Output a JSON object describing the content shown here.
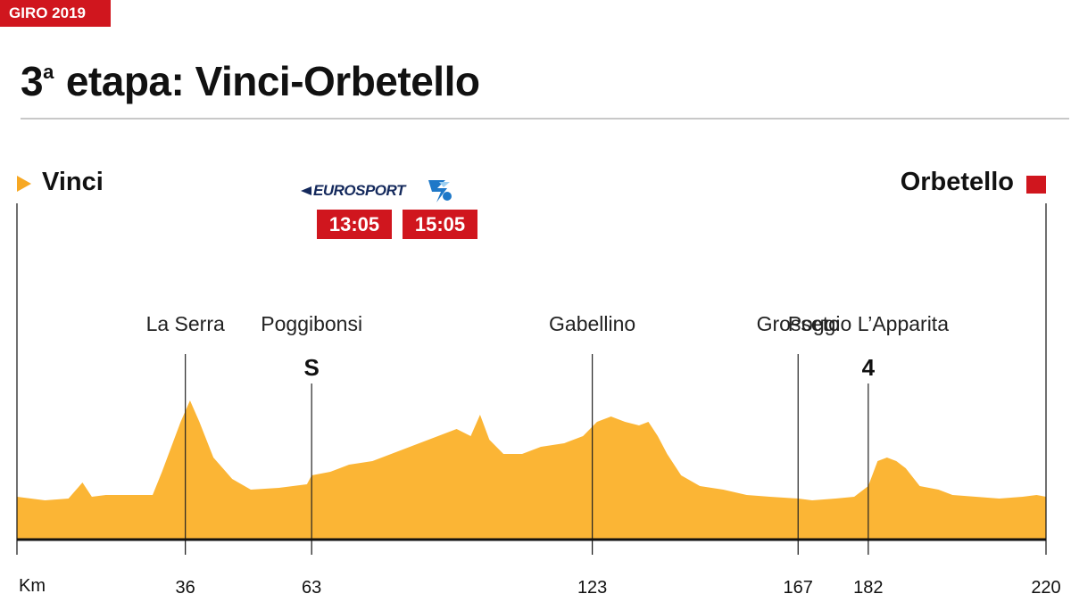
{
  "header": {
    "badge": "GIRO 2019",
    "title_number": "3",
    "title_sup": "a",
    "title_text": "etapa: Vinci-Orbetello"
  },
  "route": {
    "start": "Vinci",
    "finish": "Orbetello"
  },
  "broadcast": {
    "channel_1": "EUROSPORT",
    "channel_2_icon": "rai-sport-icon",
    "time_1": "13:05",
    "time_2": "15:05"
  },
  "colors": {
    "accent_red": "#d0161e",
    "profile_fill": "#fbb535",
    "start_arrow": "#f7a823"
  },
  "chart_data": {
    "type": "area",
    "x_axis_label": "Km",
    "x_ticks": [
      36,
      63,
      123,
      167,
      182,
      220
    ],
    "total_km": 220,
    "points_of_interest": [
      {
        "name": "La Serra",
        "km": 36,
        "marker": ""
      },
      {
        "name": "Poggibonsi",
        "km": 63,
        "marker": "S"
      },
      {
        "name": "Gabellino",
        "km": 123,
        "marker": ""
      },
      {
        "name": "Grosseto",
        "km": 167,
        "marker": ""
      },
      {
        "name": "Poggio L’Apparita",
        "km": 182,
        "marker": "4"
      }
    ],
    "profile": [
      [
        0,
        12
      ],
      [
        6,
        11
      ],
      [
        11,
        11.5
      ],
      [
        14,
        16
      ],
      [
        16,
        12
      ],
      [
        19,
        12.5
      ],
      [
        24,
        12.5
      ],
      [
        29,
        12.5
      ],
      [
        31,
        19
      ],
      [
        35,
        33
      ],
      [
        37,
        39
      ],
      [
        39,
        33
      ],
      [
        42,
        23
      ],
      [
        46,
        17
      ],
      [
        50,
        14
      ],
      [
        56,
        14.5
      ],
      [
        62,
        15.5
      ],
      [
        63,
        18
      ],
      [
        67,
        19
      ],
      [
        71,
        21
      ],
      [
        76,
        22
      ],
      [
        80,
        24
      ],
      [
        86,
        27
      ],
      [
        90,
        29
      ],
      [
        94,
        31
      ],
      [
        97,
        29
      ],
      [
        99,
        35
      ],
      [
        101,
        28
      ],
      [
        104,
        24
      ],
      [
        108,
        24
      ],
      [
        112,
        26
      ],
      [
        117,
        27
      ],
      [
        121,
        29
      ],
      [
        124,
        33
      ],
      [
        127,
        34.5
      ],
      [
        130,
        33
      ],
      [
        133,
        32
      ],
      [
        135,
        33
      ],
      [
        137,
        29
      ],
      [
        139,
        24
      ],
      [
        142,
        18
      ],
      [
        146,
        15
      ],
      [
        151,
        14
      ],
      [
        156,
        12.5
      ],
      [
        161,
        12
      ],
      [
        167,
        11.5
      ],
      [
        170,
        11
      ],
      [
        175,
        11.5
      ],
      [
        179,
        12
      ],
      [
        182,
        15
      ],
      [
        184,
        22
      ],
      [
        186,
        23
      ],
      [
        188,
        22
      ],
      [
        190,
        20
      ],
      [
        193,
        15
      ],
      [
        197,
        14
      ],
      [
        200,
        12.5
      ],
      [
        205,
        12
      ],
      [
        210,
        11.5
      ],
      [
        215,
        12
      ],
      [
        218,
        12.5
      ],
      [
        220,
        12
      ]
    ]
  }
}
